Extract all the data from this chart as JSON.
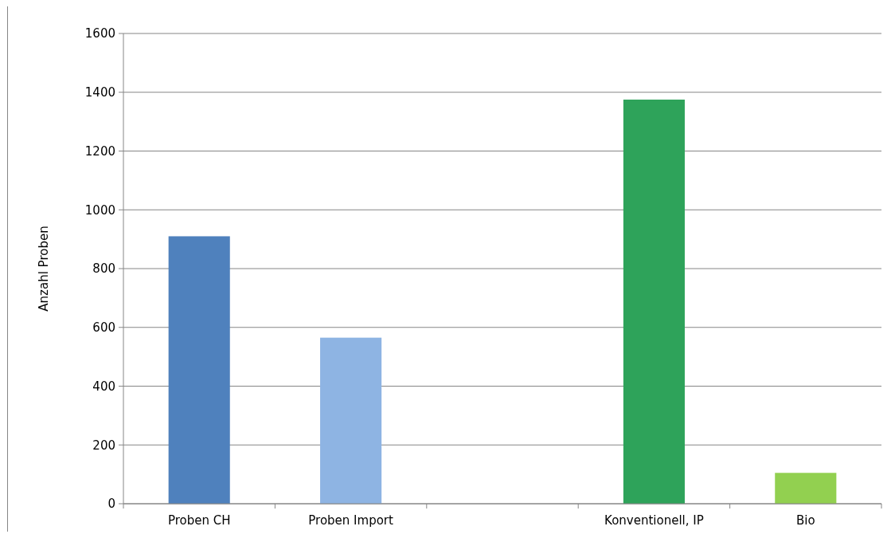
{
  "chart_data": {
    "type": "bar",
    "ylabel": "Anzahl Proben",
    "categories": [
      "Proben CH",
      "Proben Import",
      null,
      "Konventionell, IP",
      "Bio"
    ],
    "values": [
      910,
      565,
      null,
      1375,
      105
    ],
    "colors": [
      "#4f81bd",
      "#8eb4e3",
      null,
      "#2ea35a",
      "#92d050"
    ],
    "ylim": [
      0,
      1600
    ],
    "yticks": [
      0,
      200,
      400,
      600,
      800,
      1000,
      1200,
      1400,
      1600
    ],
    "grid": "y"
  }
}
